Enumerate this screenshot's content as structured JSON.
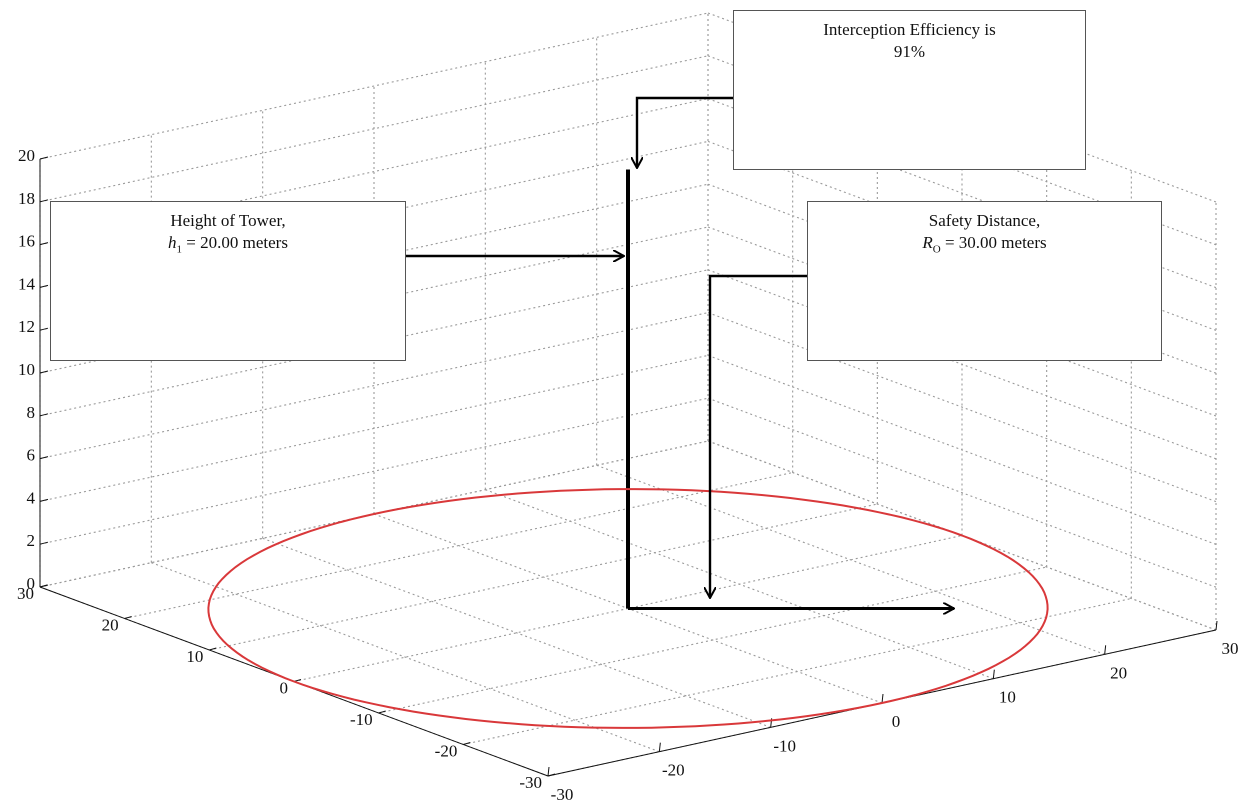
{
  "chart_data": {
    "type": "3d-line",
    "xlim": [
      -30,
      30
    ],
    "ylim": [
      -30,
      30
    ],
    "zlim": [
      0,
      20
    ],
    "grid": true,
    "z_ticks": [
      "0",
      "2",
      "4",
      "6",
      "8",
      "10",
      "12",
      "14",
      "16",
      "18",
      "20"
    ],
    "left_floor_ticks": [
      "30",
      "20",
      "10",
      "0",
      "-10",
      "-20",
      "-30"
    ],
    "right_floor_ticks": [
      "-30",
      "-20",
      "-10",
      "0",
      "10",
      "20",
      "30"
    ],
    "series": [
      {
        "role": "tower",
        "points": [
          [
            0,
            0,
            0
          ],
          [
            0,
            0,
            20
          ]
        ],
        "color": "#000000"
      },
      {
        "role": "protection-circle",
        "center": [
          0,
          0,
          0
        ],
        "radius": 30,
        "color": "#d9383a"
      },
      {
        "role": "radius-arrow",
        "points": [
          [
            0,
            0,
            0
          ],
          [
            30,
            0,
            0
          ]
        ],
        "color": "#000000"
      }
    ],
    "annotations": [
      {
        "key": "efficiency",
        "line1": "Interception Efficiency is",
        "line2": "91%"
      },
      {
        "key": "height",
        "line1": "Height of Tower,",
        "symbol": "h",
        "subscript": "1",
        "line2": " = 20.00 meters"
      },
      {
        "key": "safety",
        "line1": "Safety Distance,",
        "symbol": "R",
        "subscript": "O",
        "line2": " = 30.00 meters"
      }
    ]
  },
  "colors": {
    "grid": "#9a9a9a",
    "circle": "#d9383a",
    "axes": "#111111"
  }
}
